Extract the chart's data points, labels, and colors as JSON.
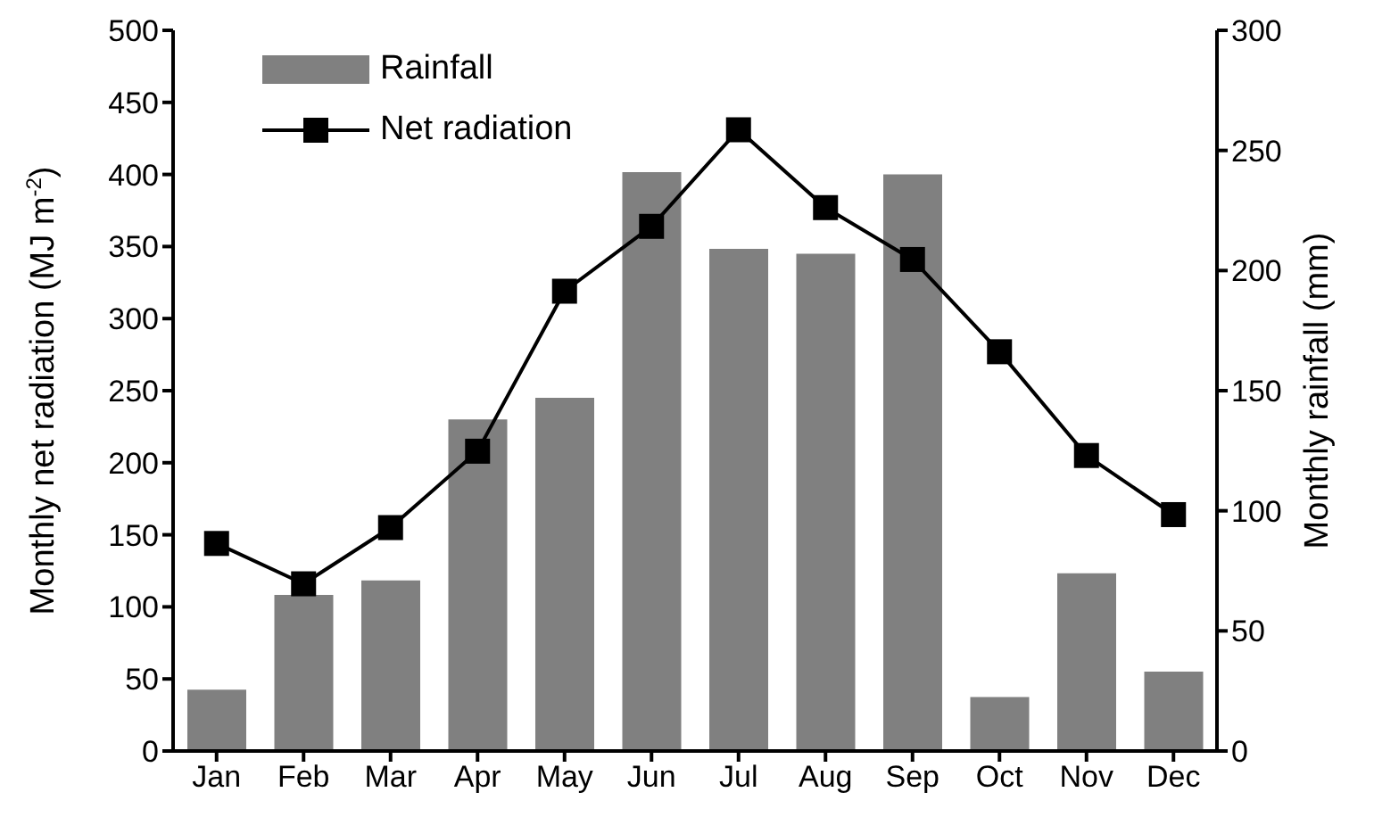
{
  "chart_data": {
    "type": "bar",
    "categories": [
      "Jan",
      "Feb",
      "Mar",
      "Apr",
      "May",
      "Jun",
      "Jul",
      "Aug",
      "Sep",
      "Oct",
      "Nov",
      "Dec"
    ],
    "series": [
      {
        "name": "Rainfall",
        "axis": "y2",
        "color": "#808080",
        "values": [
          25.5,
          65,
          71,
          138,
          147,
          241,
          209,
          207,
          240,
          22.5,
          74,
          33
        ]
      },
      {
        "name": "Net radiation",
        "type": "line",
        "color": "#000000",
        "values": [
          144,
          116,
          155,
          208,
          319,
          364,
          431,
          377,
          341,
          277,
          205,
          164
        ]
      }
    ],
    "ylabel": "Monthly net radiation (MJ m$^{-2}$)",
    "y2label": "Monthly rainfall (mm)",
    "ylim": [
      0,
      500
    ],
    "yticks": [
      0,
      50,
      100,
      150,
      200,
      250,
      300,
      350,
      400,
      450,
      500
    ],
    "y2lim": [
      0,
      300
    ],
    "y2ticks": [
      0,
      50,
      100,
      150,
      200,
      250,
      300
    ],
    "legend": "top left",
    "marker": "square",
    "line_style": "solid",
    "grid": false
  }
}
